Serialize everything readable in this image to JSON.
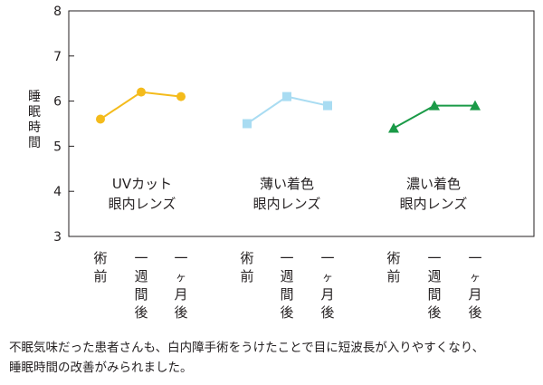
{
  "chart_data": {
    "type": "line",
    "ylabel": "睡眠時間",
    "ylim": [
      3,
      8
    ],
    "yticks": [
      "3",
      "4",
      "5",
      "6",
      "7",
      "8"
    ],
    "categories": [
      "術前",
      "一週間後",
      "一ヶ月後"
    ],
    "grid": false,
    "series": [
      {
        "name": "UVカット眼内レンズ",
        "label_lines": [
          "UVカット",
          "眼内レンズ"
        ],
        "values": [
          5.6,
          6.2,
          6.1
        ],
        "color": "#f4bb1b",
        "marker": "circle"
      },
      {
        "name": "薄い着色眼内レンズ",
        "label_lines": [
          "薄い着色",
          "眼内レンズ"
        ],
        "values": [
          5.5,
          6.1,
          5.9
        ],
        "color": "#a9dcf2",
        "marker": "square"
      },
      {
        "name": "濃い着色眼内レンズ",
        "label_lines": [
          "濃い着色",
          "眼内レンズ"
        ],
        "values": [
          5.4,
          5.9,
          5.9
        ],
        "color": "#1a9a47",
        "marker": "triangle"
      }
    ]
  },
  "caption_lines": [
    "不眠気味だった患者さんも、白内障手術をうけたことで目に短波長が入りやすくなり、",
    "睡眠時間の改善がみられました。"
  ]
}
